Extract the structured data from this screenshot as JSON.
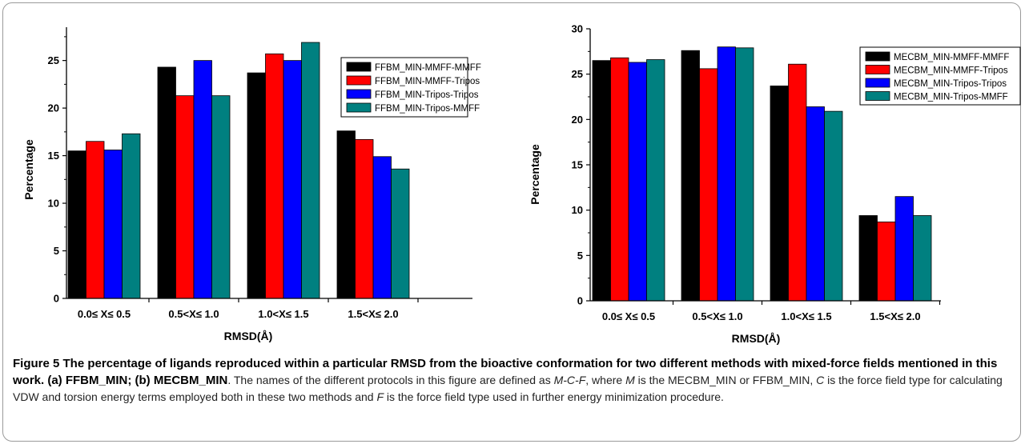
{
  "chart_data": [
    {
      "type": "bar",
      "categories": [
        "0.0≤ X≤ 0.5",
        "0.5<X≤ 1.0",
        "1.0<X≤ 1.5",
        "1.5<X≤ 2.0"
      ],
      "series": [
        {
          "name": "FFBM_MIN-MMFF-MMFF",
          "color": "#000000",
          "values": [
            15.5,
            24.3,
            23.7,
            17.6
          ]
        },
        {
          "name": "FFBM_MIN-MMFF-Tripos",
          "color": "#ff0000",
          "values": [
            16.5,
            21.3,
            25.7,
            16.7
          ]
        },
        {
          "name": "FFBM_MIN-Tripos-Tripos",
          "color": "#0000ff",
          "values": [
            15.6,
            25.0,
            25.0,
            14.9
          ]
        },
        {
          "name": "FFBM_MIN-Tripos-MMFF",
          "color": "#008080",
          "values": [
            17.3,
            21.3,
            26.9,
            13.6
          ]
        }
      ],
      "xlabel": "RMSD(Å)",
      "ylabel": "Percentage",
      "ylim": [
        0,
        28.5
      ],
      "yticks": [
        0,
        5,
        10,
        15,
        20,
        25
      ],
      "legend_position": "top-right",
      "grid": false
    },
    {
      "type": "bar",
      "categories": [
        "0.0≤ X≤ 0.5",
        "0.5<X≤ 1.0",
        "1.0<X≤ 1.5",
        "1.5<X≤ 2.0"
      ],
      "series": [
        {
          "name": "MECBM_MIN-MMFF-MMFF",
          "color": "#000000",
          "values": [
            26.5,
            27.6,
            23.7,
            9.4
          ]
        },
        {
          "name": "MECBM_MIN-MMFF-Tripos",
          "color": "#ff0000",
          "values": [
            26.8,
            25.6,
            26.1,
            8.7
          ]
        },
        {
          "name": "MECBM_MIN-Tripos-Tripos",
          "color": "#0000ff",
          "values": [
            26.3,
            28.0,
            21.4,
            11.5
          ]
        },
        {
          "name": "MECBM_MIN-Tripos-MMFF",
          "color": "#008080",
          "values": [
            26.6,
            27.9,
            20.9,
            9.4
          ]
        }
      ],
      "xlabel": "RMSD(Å)",
      "ylabel": "Percentage",
      "ylim": [
        0,
        30
      ],
      "yticks": [
        0,
        5,
        10,
        15,
        20,
        25,
        30
      ],
      "legend_position": "top-right",
      "grid": false
    }
  ],
  "caption": {
    "title": "Figure 5 The percentage of ligands reproduced within a particular RMSD from the bioactive conformation for two different methods with mixed-force fields mentioned in this work. (a) FFBM_MIN; (b) MECBM_MIN",
    "t1": ". The names of the different protocols in this figure are defined as ",
    "mcf": "M-C-F",
    "t2": ", where ",
    "m": "M",
    "t3": " is the MECBM_MIN or FFBM_MIN, ",
    "c": "C",
    "t4": " is the force field type for calculating VDW and torsion energy terms employed both in these two methods and ",
    "f": "F",
    "t5": " is the force field type used in further energy minimization procedure."
  }
}
